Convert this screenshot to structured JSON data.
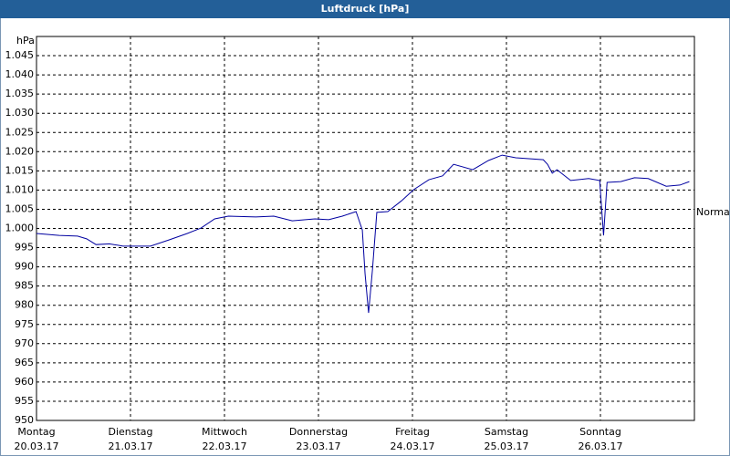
{
  "chart_data": {
    "type": "line",
    "title": "Luftdruck [hPa]",
    "y_label": "hPa",
    "annotation": "Normal",
    "xlim": [
      0,
      168
    ],
    "xticks": [
      0,
      24,
      48,
      72,
      96,
      120,
      144
    ],
    "xtick_labels": [
      {
        "day": "Montag",
        "date": "20.03.17"
      },
      {
        "day": "Dienstag",
        "date": "21.03.17"
      },
      {
        "day": "Mittwoch",
        "date": "22.03.17"
      },
      {
        "day": "Donnerstag",
        "date": "23.03.17"
      },
      {
        "day": "Freitag",
        "date": "24.03.17"
      },
      {
        "day": "Samstag",
        "date": "25.03.17"
      },
      {
        "day": "Sonntag",
        "date": "26.03.17"
      }
    ],
    "ylim": [
      950,
      1050
    ],
    "yticks": [
      950,
      955,
      960,
      965,
      970,
      975,
      980,
      985,
      990,
      995,
      {
        "value": 1000,
        "label": "1.000"
      },
      {
        "value": 1005,
        "label": "1.005"
      },
      {
        "value": 1010,
        "label": "1.010"
      },
      {
        "value": 1015,
        "label": "1.015"
      },
      {
        "value": 1020,
        "label": "1.020"
      },
      {
        "value": 1025,
        "label": "1.025"
      },
      {
        "value": 1030,
        "label": "1.030"
      },
      {
        "value": 1035,
        "label": "1.035"
      },
      {
        "value": 1040,
        "label": "1.040"
      },
      {
        "value": 1045,
        "label": "1.045"
      }
    ],
    "grid": true,
    "series": [
      {
        "name": "Luftdruck",
        "color": "#0000a0",
        "x": [
          0,
          5.8,
          10.5,
          12.8,
          15.2,
          18.6,
          22.1,
          29.1,
          33.8,
          38.5,
          42,
          45.5,
          49,
          56,
          60.6,
          65.3,
          71.1,
          74.6,
          78.1,
          81.6,
          83.2,
          83.9,
          84.8,
          85.8,
          86.9,
          89.7,
          93.2,
          96.3,
          100.2,
          103.7,
          106.5,
          111.4,
          115.4,
          118.9,
          122.4,
          129.4,
          130.5,
          131.7,
          132.9,
          136.4,
          141,
          143.8,
          144.8,
          145.7,
          149.2,
          152.7,
          156.2,
          160.8,
          164.3,
          166.7
        ],
        "values": [
          998.7,
          998.2,
          998,
          997.3,
          995.8,
          996,
          995.4,
          995.4,
          997,
          998.7,
          1000.1,
          1002.5,
          1003.2,
          1003,
          1003.2,
          1002,
          1002.5,
          1002.3,
          1003.2,
          1004.4,
          999.6,
          988.2,
          978,
          989.4,
          1004.2,
          1004.4,
          1007.2,
          1010.1,
          1012.7,
          1013.7,
          1016.7,
          1015.3,
          1017.7,
          1019.1,
          1018.4,
          1017.9,
          1016.7,
          1014.4,
          1015.3,
          1012.5,
          1013,
          1012.5,
          998.2,
          1012,
          1012.2,
          1013.2,
          1013,
          1011,
          1011.3,
          1012.2
        ]
      }
    ]
  }
}
